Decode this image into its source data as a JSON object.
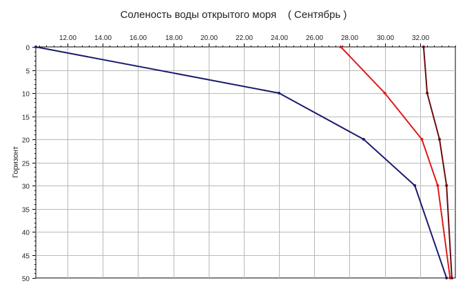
{
  "chart_data": {
    "type": "line",
    "title": "Соленость воды открытого моря    ( Сентябрь )",
    "xlabel": "",
    "ylabel": "Горизонт",
    "x_axis_position": "top",
    "y_axis_inverted": true,
    "xlim": [
      10.2,
      34.0
    ],
    "ylim": [
      0,
      50
    ],
    "x_ticks": [
      12,
      14,
      16,
      18,
      20,
      22,
      24,
      26,
      28,
      30,
      32
    ],
    "x_tick_labels": [
      "12.00",
      "14.00",
      "16.00",
      "18.00",
      "20.00",
      "22.00",
      "24.00",
      "26.00",
      "28.00",
      "30.00",
      "32.00"
    ],
    "y_ticks": [
      0,
      5,
      10,
      15,
      20,
      25,
      30,
      35,
      40,
      45,
      50
    ],
    "y_tick_labels": [
      "0",
      "5",
      "10",
      "15",
      "20",
      "25",
      "30",
      "35",
      "40",
      "45",
      "50"
    ],
    "grid": true,
    "series": [
      {
        "color": "#1a1a6e",
        "points": [
          [
            10.2,
            0
          ],
          [
            24.0,
            10
          ],
          [
            28.8,
            20
          ],
          [
            31.7,
            30
          ],
          [
            33.5,
            50
          ]
        ]
      },
      {
        "color": "#e01818",
        "points": [
          [
            27.5,
            0
          ],
          [
            30.0,
            10
          ],
          [
            32.1,
            20
          ],
          [
            33.0,
            30
          ],
          [
            33.7,
            50
          ]
        ]
      },
      {
        "color": "#6a0a0a",
        "points": [
          [
            32.2,
            0
          ],
          [
            32.4,
            10
          ],
          [
            33.1,
            20
          ],
          [
            33.5,
            30
          ],
          [
            33.8,
            50
          ]
        ]
      }
    ]
  }
}
